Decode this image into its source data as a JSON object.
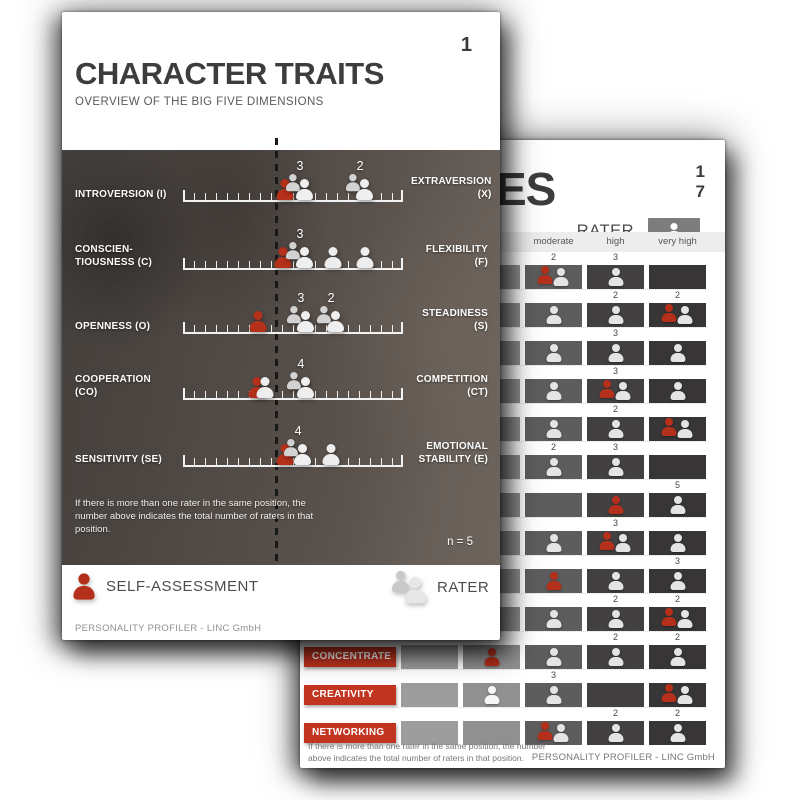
{
  "colors": {
    "accent_red": "#c13420",
    "self_red": "#b4301a",
    "page_text_dark": "#3d3d3d"
  },
  "front_page": {
    "page_number": "1",
    "title": "CHARACTER TRAITS",
    "subtitle": "OVERVIEW OF THE BIG FIVE DIMENSIONS",
    "note": "If there is more than one rater in the same position, the number above indicates the total number of raters in that position.",
    "sample_size": "n = 5",
    "scales": [
      {
        "left": "INTROVERSION (I)",
        "right": "EXTRAVERSION (X)",
        "markers": [
          {
            "kind": "self",
            "pos": 46.4
          },
          {
            "kind": "group",
            "count": "3",
            "pos": 53.2
          },
          {
            "kind": "group",
            "count": "2",
            "pos": 80.5
          }
        ]
      },
      {
        "left": "CONSCIEN-\nTIOUSNESS (C)",
        "right": "FLEXIBILITY (F)",
        "markers": [
          {
            "kind": "self",
            "pos": 45.5
          },
          {
            "kind": "group",
            "count": "3",
            "pos": 53.2
          },
          {
            "kind": "single",
            "pos": 68.2
          },
          {
            "kind": "single",
            "pos": 82.7
          }
        ]
      },
      {
        "left": "OPENNESS (O)",
        "right": "STEADINESS (S)",
        "markers": [
          {
            "kind": "self",
            "pos": 34.1
          },
          {
            "kind": "group",
            "count": "3",
            "pos": 53.6
          },
          {
            "kind": "group",
            "count": "2",
            "pos": 67.3
          }
        ]
      },
      {
        "left": "COOPERATION (CO)",
        "right": "COMPETITION (CT)",
        "markers": [
          {
            "kind": "self",
            "pos": 33.6
          },
          {
            "kind": "single",
            "pos": 37.3
          },
          {
            "kind": "group",
            "count": "4",
            "pos": 53.6
          }
        ]
      },
      {
        "left": "SENSITIVITY (SE)",
        "right": "EMOTIONAL\nSTABILITY (E)",
        "markers": [
          {
            "kind": "self",
            "pos": 46.4
          },
          {
            "kind": "group",
            "count": "4",
            "pos": 52.3
          },
          {
            "kind": "single",
            "pos": 67.3
          }
        ]
      }
    ],
    "legend": {
      "self_label": "SELF-ASSESSMENT",
      "rater_label": "RATER"
    },
    "footer": "PERSONALITY PROFILER - LINC GmbH"
  },
  "back_page": {
    "title_fragment": "ES",
    "page_numbers": [
      "1",
      "7"
    ],
    "rater_label": "RATER",
    "column_headers": [
      "moderate",
      "high",
      "very high"
    ],
    "rows": [
      {
        "label": "",
        "cells": [
          {
            "icons": "",
            "count": ""
          },
          {
            "icons": "",
            "count": ""
          },
          {
            "icons": "rg",
            "count": "2"
          },
          {
            "icons": "g",
            "count": "3"
          },
          {
            "icons": "",
            "count": ""
          }
        ]
      },
      {
        "label": "",
        "cells": [
          {
            "icons": "",
            "count": ""
          },
          {
            "icons": "",
            "count": ""
          },
          {
            "icons": "g",
            "count": ""
          },
          {
            "icons": "g",
            "count": "2"
          },
          {
            "icons": "rg",
            "count": "2"
          }
        ]
      },
      {
        "label": "",
        "cells": [
          {
            "icons": "",
            "count": ""
          },
          {
            "icons": "",
            "count": ""
          },
          {
            "icons": "g",
            "count": ""
          },
          {
            "icons": "g",
            "count": "3"
          },
          {
            "icons": "g",
            "count": ""
          }
        ]
      },
      {
        "label": "",
        "cells": [
          {
            "icons": "",
            "count": ""
          },
          {
            "icons": "",
            "count": ""
          },
          {
            "icons": "g",
            "count": ""
          },
          {
            "icons": "rg",
            "count": "3"
          },
          {
            "icons": "g",
            "count": ""
          }
        ]
      },
      {
        "label": "",
        "cells": [
          {
            "icons": "",
            "count": ""
          },
          {
            "icons": "",
            "count": ""
          },
          {
            "icons": "g",
            "count": ""
          },
          {
            "icons": "g",
            "count": "2"
          },
          {
            "icons": "rg",
            "count": ""
          }
        ]
      },
      {
        "label": "",
        "cells": [
          {
            "icons": "",
            "count": ""
          },
          {
            "icons": "",
            "count": ""
          },
          {
            "icons": "g",
            "count": "2"
          },
          {
            "icons": "g",
            "count": "3"
          },
          {
            "icons": "",
            "count": ""
          }
        ]
      },
      {
        "label": "",
        "cells": [
          {
            "icons": "",
            "count": ""
          },
          {
            "icons": "",
            "count": ""
          },
          {
            "icons": "",
            "count": ""
          },
          {
            "icons": "r",
            "count": ""
          },
          {
            "icons": "g",
            "count": "5"
          }
        ]
      },
      {
        "label": "",
        "cells": [
          {
            "icons": "",
            "count": ""
          },
          {
            "icons": "",
            "count": ""
          },
          {
            "icons": "g",
            "count": ""
          },
          {
            "icons": "rg",
            "count": "3"
          },
          {
            "icons": "g",
            "count": ""
          }
        ]
      },
      {
        "label": "",
        "cells": [
          {
            "icons": "",
            "count": ""
          },
          {
            "icons": "",
            "count": ""
          },
          {
            "icons": "r",
            "count": ""
          },
          {
            "icons": "g",
            "count": ""
          },
          {
            "icons": "g",
            "count": "3"
          }
        ]
      },
      {
        "label": "",
        "cells": [
          {
            "icons": "",
            "count": ""
          },
          {
            "icons": "",
            "count": ""
          },
          {
            "icons": "g",
            "count": ""
          },
          {
            "icons": "g",
            "count": "2"
          },
          {
            "icons": "rg",
            "count": "2"
          }
        ]
      },
      {
        "label": "CONCENTRATE",
        "cells": [
          {
            "icons": "",
            "count": ""
          },
          {
            "icons": "r",
            "count": ""
          },
          {
            "icons": "g",
            "count": ""
          },
          {
            "icons": "g",
            "count": "2"
          },
          {
            "icons": "g",
            "count": "2"
          }
        ]
      },
      {
        "label": "CREATIVITY",
        "cells": [
          {
            "icons": "",
            "count": ""
          },
          {
            "icons": "g",
            "count": ""
          },
          {
            "icons": "g",
            "count": "3"
          },
          {
            "icons": "",
            "count": ""
          },
          {
            "icons": "rg",
            "count": ""
          }
        ]
      },
      {
        "label": "NETWORKING",
        "cells": [
          {
            "icons": "",
            "count": ""
          },
          {
            "icons": "",
            "count": ""
          },
          {
            "icons": "rg",
            "count": ""
          },
          {
            "icons": "g",
            "count": "2"
          },
          {
            "icons": "g",
            "count": "2"
          }
        ]
      }
    ],
    "note": "If there is more than one rater in the same position, the number above indicates the total number of raters in that position.",
    "footer": "PERSONALITY PROFILER - LINC GmbH"
  }
}
